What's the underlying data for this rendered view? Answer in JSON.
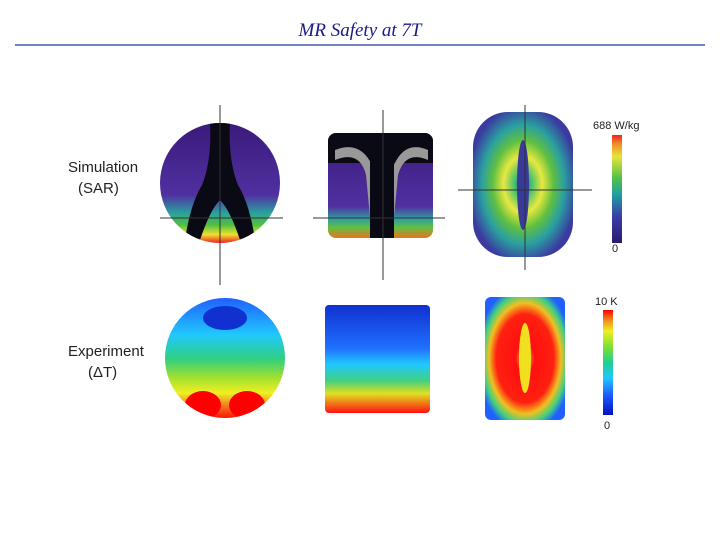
{
  "header": {
    "title": "MR Safety at 7T"
  },
  "rows": [
    {
      "label": "Simulation",
      "unit": "(SAR)",
      "scale_max": "688 W/kg",
      "scale_min": "0"
    },
    {
      "label": "Experiment",
      "unit": "(ΔT)",
      "scale_max": "10 K",
      "scale_min": "0"
    }
  ]
}
